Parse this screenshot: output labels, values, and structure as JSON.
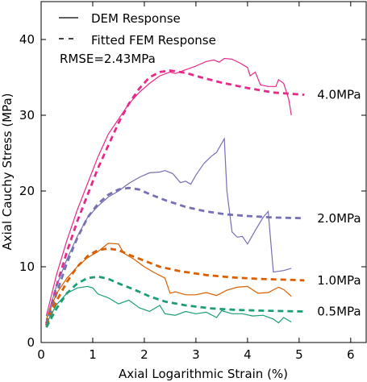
{
  "chart_data": {
    "type": "line",
    "xlabel": "Axial Logarithmic Strain (%)",
    "ylabel": "Axial Cauchy Stress (MPa)",
    "xlim": [
      0,
      6.3
    ],
    "ylim": [
      0,
      45
    ],
    "xticks": [
      0,
      1,
      2,
      3,
      4,
      5,
      6
    ],
    "yticks": [
      0,
      10,
      20,
      30,
      40
    ],
    "grid": false,
    "legend": {
      "placement": "top-left",
      "entries": [
        {
          "label": "DEM Response",
          "style": "solid"
        },
        {
          "label": "Fitted FEM Response",
          "style": "dashed"
        }
      ],
      "note": "RMSE=2.43MPa"
    },
    "series": [
      {
        "name": "4.0MPa",
        "color": "#e7298a",
        "dem": [
          [
            0.1,
            3.5
          ],
          [
            0.3,
            9
          ],
          [
            0.5,
            13.5
          ],
          [
            0.7,
            17.5
          ],
          [
            0.9,
            21
          ],
          [
            1.1,
            24.5
          ],
          [
            1.3,
            27.5
          ],
          [
            1.5,
            29.5
          ],
          [
            1.7,
            31.5
          ],
          [
            1.9,
            33
          ],
          [
            2.1,
            34.2
          ],
          [
            2.3,
            35.2
          ],
          [
            2.5,
            35.7
          ],
          [
            2.6,
            35.5
          ],
          [
            2.8,
            36
          ],
          [
            3.0,
            36.5
          ],
          [
            3.2,
            37.1
          ],
          [
            3.35,
            37.3
          ],
          [
            3.45,
            37.0
          ],
          [
            3.55,
            37.5
          ],
          [
            3.7,
            37.4
          ],
          [
            3.85,
            36.9
          ],
          [
            4.0,
            36.3
          ],
          [
            4.05,
            35.2
          ],
          [
            4.15,
            35.7
          ],
          [
            4.25,
            34.0
          ],
          [
            4.4,
            33.8
          ],
          [
            4.55,
            33.8
          ],
          [
            4.6,
            34.7
          ],
          [
            4.7,
            34.2
          ],
          [
            4.8,
            32.1
          ],
          [
            4.85,
            30.0
          ]
        ],
        "fem": [
          [
            0.1,
            2.5
          ],
          [
            0.3,
            7.5
          ],
          [
            0.5,
            12
          ],
          [
            0.7,
            16
          ],
          [
            0.9,
            19.5
          ],
          [
            1.1,
            23
          ],
          [
            1.3,
            26
          ],
          [
            1.5,
            29
          ],
          [
            1.7,
            31.5
          ],
          [
            1.9,
            33.5
          ],
          [
            2.1,
            35
          ],
          [
            2.3,
            35.7
          ],
          [
            2.5,
            35.9
          ],
          [
            2.8,
            35.6
          ],
          [
            3.1,
            35.0
          ],
          [
            3.5,
            34.3
          ],
          [
            4.0,
            33.6
          ],
          [
            4.5,
            33.0
          ],
          [
            5.1,
            32.7
          ]
        ]
      },
      {
        "name": "2.0MPa",
        "color": "#7570b3",
        "dem": [
          [
            0.1,
            3.0
          ],
          [
            0.3,
            7.5
          ],
          [
            0.5,
            11
          ],
          [
            0.7,
            14
          ],
          [
            0.9,
            16.5
          ],
          [
            1.1,
            18
          ],
          [
            1.3,
            19.2
          ],
          [
            1.5,
            20
          ],
          [
            1.7,
            21
          ],
          [
            1.9,
            21.8
          ],
          [
            2.1,
            22.4
          ],
          [
            2.3,
            22.5
          ],
          [
            2.4,
            22.7
          ],
          [
            2.55,
            22.3
          ],
          [
            2.7,
            21.1
          ],
          [
            2.8,
            21.3
          ],
          [
            2.9,
            20.9
          ],
          [
            3.0,
            22.1
          ],
          [
            3.15,
            23.6
          ],
          [
            3.3,
            24.6
          ],
          [
            3.4,
            25.1
          ],
          [
            3.55,
            26.9
          ],
          [
            3.6,
            20.0
          ],
          [
            3.7,
            14.6
          ],
          [
            3.8,
            13.9
          ],
          [
            3.9,
            14.0
          ],
          [
            4.0,
            13.0
          ],
          [
            4.15,
            14.8
          ],
          [
            4.3,
            16.5
          ],
          [
            4.4,
            17.3
          ],
          [
            4.5,
            9.3
          ],
          [
            4.7,
            9.5
          ],
          [
            4.85,
            9.8
          ]
        ],
        "fem": [
          [
            0.1,
            2.3
          ],
          [
            0.3,
            6.5
          ],
          [
            0.5,
            10.5
          ],
          [
            0.7,
            13.8
          ],
          [
            0.9,
            16.5
          ],
          [
            1.1,
            18.3
          ],
          [
            1.3,
            19.5
          ],
          [
            1.5,
            20.2
          ],
          [
            1.7,
            20.4
          ],
          [
            1.9,
            20.2
          ],
          [
            2.1,
            19.6
          ],
          [
            2.4,
            18.8
          ],
          [
            2.8,
            17.9
          ],
          [
            3.2,
            17.3
          ],
          [
            3.6,
            16.9
          ],
          [
            4.0,
            16.7
          ],
          [
            4.5,
            16.5
          ],
          [
            5.1,
            16.4
          ]
        ]
      },
      {
        "name": "1.0MPa",
        "color": "#d95f02",
        "dem": [
          [
            0.1,
            3.0
          ],
          [
            0.3,
            6.5
          ],
          [
            0.5,
            8.5
          ],
          [
            0.7,
            10
          ],
          [
            0.9,
            11.2
          ],
          [
            1.1,
            12.0
          ],
          [
            1.3,
            13.1
          ],
          [
            1.5,
            13.0
          ],
          [
            1.6,
            11.8
          ],
          [
            1.8,
            11.0
          ],
          [
            2.0,
            10.0
          ],
          [
            2.2,
            9.2
          ],
          [
            2.4,
            8.5
          ],
          [
            2.5,
            6.5
          ],
          [
            2.6,
            6.7
          ],
          [
            2.8,
            6.3
          ],
          [
            3.0,
            6.3
          ],
          [
            3.2,
            6.6
          ],
          [
            3.4,
            6.2
          ],
          [
            3.6,
            6.9
          ],
          [
            3.8,
            7.3
          ],
          [
            4.0,
            7.4
          ],
          [
            4.2,
            6.5
          ],
          [
            4.4,
            6.6
          ],
          [
            4.6,
            7.3
          ],
          [
            4.7,
            7.0
          ],
          [
            4.85,
            6.1
          ]
        ],
        "fem": [
          [
            0.1,
            2.2
          ],
          [
            0.3,
            5.5
          ],
          [
            0.5,
            8.0
          ],
          [
            0.7,
            10.0
          ],
          [
            0.9,
            11.4
          ],
          [
            1.1,
            12.2
          ],
          [
            1.3,
            12.4
          ],
          [
            1.5,
            12.2
          ],
          [
            1.7,
            11.6
          ],
          [
            2.0,
            10.8
          ],
          [
            2.3,
            10.0
          ],
          [
            2.7,
            9.4
          ],
          [
            3.2,
            8.9
          ],
          [
            3.7,
            8.6
          ],
          [
            4.2,
            8.4
          ],
          [
            4.7,
            8.3
          ],
          [
            5.1,
            8.2
          ]
        ]
      },
      {
        "name": "0.5MPa",
        "color": "#1b9e77",
        "dem": [
          [
            0.1,
            2.5
          ],
          [
            0.3,
            5.0
          ],
          [
            0.5,
            6.5
          ],
          [
            0.7,
            7.2
          ],
          [
            0.9,
            7.4
          ],
          [
            1.0,
            7.2
          ],
          [
            1.1,
            6.4
          ],
          [
            1.3,
            5.9
          ],
          [
            1.5,
            5.1
          ],
          [
            1.7,
            5.6
          ],
          [
            1.9,
            4.6
          ],
          [
            2.1,
            4.1
          ],
          [
            2.3,
            4.9
          ],
          [
            2.4,
            3.8
          ],
          [
            2.6,
            3.6
          ],
          [
            2.8,
            4.1
          ],
          [
            3.0,
            3.8
          ],
          [
            3.2,
            4.0
          ],
          [
            3.4,
            3.3
          ],
          [
            3.5,
            4.2
          ],
          [
            3.7,
            3.8
          ],
          [
            3.9,
            3.8
          ],
          [
            4.1,
            3.5
          ],
          [
            4.3,
            3.6
          ],
          [
            4.5,
            3.1
          ],
          [
            4.6,
            2.6
          ],
          [
            4.7,
            3.3
          ],
          [
            4.85,
            2.7
          ]
        ],
        "fem": [
          [
            0.1,
            2.0
          ],
          [
            0.3,
            4.5
          ],
          [
            0.5,
            6.5
          ],
          [
            0.7,
            7.8
          ],
          [
            0.9,
            8.5
          ],
          [
            1.1,
            8.7
          ],
          [
            1.3,
            8.4
          ],
          [
            1.5,
            7.8
          ],
          [
            1.8,
            7.0
          ],
          [
            2.1,
            6.1
          ],
          [
            2.4,
            5.4
          ],
          [
            2.8,
            4.9
          ],
          [
            3.3,
            4.5
          ],
          [
            3.8,
            4.3
          ],
          [
            4.3,
            4.2
          ],
          [
            5.1,
            4.1
          ]
        ]
      }
    ]
  }
}
